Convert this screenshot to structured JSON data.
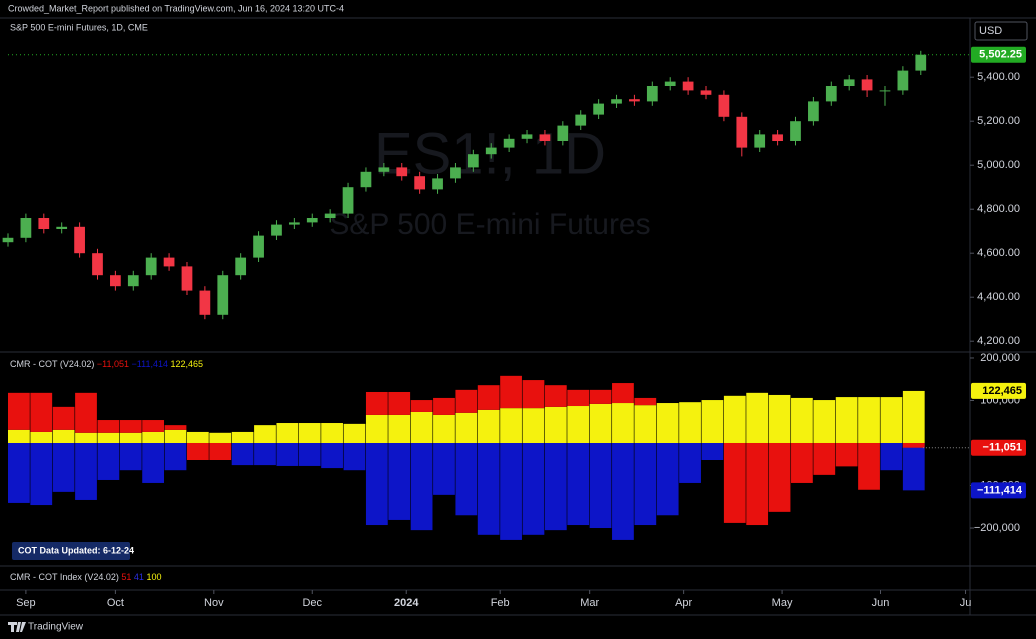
{
  "header": {
    "publisher": "Crowded_Market_Report published on TradingView.com, Jun 16, 2024 13:20 UTC-4",
    "currency": "USD",
    "footer": "TradingView"
  },
  "chart_data": [
    {
      "type": "candlestick",
      "title": "S&P 500 E-mini Futures, 1D, CME",
      "watermark": "ES1!, 1D",
      "watermark_subtitle": "S&P 500 E-mini Futures",
      "up_color": "#4caf50",
      "down_color": "#f23645",
      "last_value": {
        "value": 5502.25,
        "label": "5,502.25"
      },
      "last_color": "#22ab23",
      "x": [
        0,
        4,
        8,
        12,
        16,
        20,
        24,
        28,
        32,
        36,
        40,
        44,
        48,
        52,
        56,
        60,
        64,
        68,
        72,
        76,
        80,
        84,
        88,
        92,
        96,
        100,
        104,
        108,
        112,
        116,
        120,
        124,
        128,
        132,
        136,
        140,
        144,
        148,
        152,
        156,
        160,
        164,
        168,
        172,
        176,
        180,
        184,
        188,
        192,
        196,
        200,
        204
      ],
      "open": [
        4650,
        4670,
        4760,
        4710,
        4720,
        4600,
        4500,
        4450,
        4500,
        4580,
        4540,
        4430,
        4320,
        4500,
        4580,
        4680,
        4730,
        4740,
        4760,
        4780,
        4900,
        4970,
        4990,
        4950,
        4890,
        4940,
        4990,
        5050,
        5080,
        5120,
        5140,
        5110,
        5180,
        5230,
        5280,
        5300,
        5290,
        5360,
        5380,
        5340,
        5320,
        5220,
        5080,
        5140,
        5110,
        5200,
        5290,
        5360,
        5390,
        5340,
        5340,
        5430
      ],
      "high": [
        4690,
        4780,
        4780,
        4740,
        4740,
        4620,
        4520,
        4520,
        4600,
        4600,
        4560,
        4450,
        4520,
        4600,
        4700,
        4750,
        4760,
        4780,
        4800,
        4920,
        4990,
        5010,
        5010,
        4970,
        4960,
        5010,
        5070,
        5100,
        5140,
        5160,
        5160,
        5200,
        5250,
        5300,
        5320,
        5320,
        5380,
        5400,
        5400,
        5360,
        5340,
        5240,
        5160,
        5160,
        5220,
        5310,
        5380,
        5410,
        5410,
        5360,
        5450,
        5520
      ],
      "low": [
        4630,
        4650,
        4690,
        4690,
        4580,
        4480,
        4430,
        4430,
        4480,
        4520,
        4410,
        4300,
        4300,
        4480,
        4560,
        4660,
        4710,
        4720,
        4740,
        4760,
        4880,
        4950,
        4930,
        4870,
        4870,
        4920,
        4970,
        5030,
        5060,
        5100,
        5090,
        5090,
        5160,
        5210,
        5260,
        5270,
        5270,
        5340,
        5320,
        5300,
        5200,
        5040,
        5060,
        5090,
        5090,
        5180,
        5270,
        5340,
        5310,
        5270,
        5320,
        5410
      ],
      "close": [
        4670,
        4760,
        4710,
        4720,
        4600,
        4500,
        4450,
        4500,
        4580,
        4540,
        4430,
        4320,
        4500,
        4580,
        4680,
        4730,
        4740,
        4760,
        4780,
        4900,
        4970,
        4990,
        4950,
        4890,
        4940,
        4990,
        5050,
        5080,
        5120,
        5140,
        5110,
        5180,
        5230,
        5280,
        5300,
        5290,
        5360,
        5380,
        5340,
        5320,
        5220,
        5080,
        5140,
        5110,
        5200,
        5290,
        5360,
        5390,
        5340,
        5340,
        5430,
        5502.25
      ],
      "xlim": [
        0,
        215
      ],
      "xticks": [
        {
          "value": 4,
          "label": "Sep"
        },
        {
          "value": 24,
          "label": "Oct"
        },
        {
          "value": 46,
          "label": "Nov"
        },
        {
          "value": 68,
          "label": "Dec"
        },
        {
          "value": 89,
          "label": "2024"
        },
        {
          "value": 110,
          "label": "Feb"
        },
        {
          "value": 130,
          "label": "Mar"
        },
        {
          "value": 151,
          "label": "Apr"
        },
        {
          "value": 173,
          "label": "May"
        },
        {
          "value": 195,
          "label": "Jun"
        },
        {
          "value": 214,
          "label": "Ju"
        }
      ],
      "ylim": [
        4160,
        5660
      ],
      "yticks": [
        {
          "value": 4200,
          "label": "4,200.00"
        },
        {
          "value": 4400,
          "label": "4,400.00"
        },
        {
          "value": 4600,
          "label": "4,600.00"
        },
        {
          "value": 4800,
          "label": "4,800.00"
        },
        {
          "value": 5000,
          "label": "5,000.00"
        },
        {
          "value": 5200,
          "label": "5,200.00"
        },
        {
          "value": 5400,
          "label": "5,400.00"
        }
      ]
    },
    {
      "type": "stacked-bar",
      "title": "CMR - COT (V24.02)",
      "note": "COT Data Updated:  6-12-24",
      "x": [
        0,
        5,
        10,
        15,
        20,
        25,
        30,
        35,
        40,
        45,
        50,
        55,
        60,
        65,
        70,
        75,
        80,
        85,
        90,
        95,
        100,
        105,
        110,
        115,
        120,
        125,
        130,
        135,
        140,
        145,
        150,
        155,
        160,
        165,
        170,
        175,
        180,
        185,
        190,
        195,
        200
      ],
      "xlim": [
        0,
        215
      ],
      "ylim": [
        -287000,
        207000
      ],
      "yticks": [
        {
          "value": 200000,
          "label": "200,000"
        },
        {
          "value": 100000,
          "label": "100,000"
        },
        {
          "value": -100000,
          "label": "−100,000"
        },
        {
          "value": -200000,
          "label": "−200,000"
        }
      ],
      "series": [
        {
          "color": "#f5f20e",
          "legend_value_label": "122,465",
          "values": [
            31000,
            26000,
            31000,
            24000,
            24000,
            24000,
            26000,
            31000,
            26000,
            24000,
            26000,
            42000,
            47000,
            47000,
            47000,
            45000,
            66000,
            66000,
            73000,
            66000,
            71000,
            78000,
            82000,
            82000,
            85000,
            87000,
            92000,
            94000,
            89000,
            94000,
            96000,
            101000,
            111000,
            118000,
            113000,
            106000,
            101000,
            108000,
            108000,
            108000,
            122465
          ]
        },
        {
          "color": "#e8110e",
          "legend_value_label": "−11,051",
          "values": [
            87000,
            92000,
            54000,
            94000,
            30000,
            30000,
            28000,
            11000,
            -40000,
            -40000,
            null,
            null,
            null,
            null,
            null,
            null,
            54000,
            54000,
            28000,
            40000,
            54000,
            58000,
            76000,
            66000,
            51000,
            38000,
            33000,
            47000,
            17000,
            null,
            null,
            null,
            -188000,
            -193000,
            -162000,
            -94000,
            -75000,
            -55000,
            -110000,
            null,
            -11051
          ]
        },
        {
          "color": "#0d15c8",
          "legend_value_label": "−111,414",
          "values": [
            -141000,
            -146000,
            -115000,
            -134000,
            -87000,
            -64000,
            -94000,
            -64000,
            null,
            null,
            -52000,
            -52000,
            -54000,
            -54000,
            -59000,
            -64000,
            -193000,
            -181000,
            -205000,
            -122000,
            -170000,
            -216000,
            -228000,
            -216000,
            -205000,
            -193000,
            -200000,
            -228000,
            -193000,
            -170000,
            -94000,
            -40000,
            null,
            null,
            null,
            null,
            null,
            null,
            null,
            -64000,
            -111414
          ]
        }
      ]
    },
    {
      "type": "index",
      "title": "CMR - COT Index (V24.02)",
      "values": [
        51,
        41,
        100
      ],
      "colors": [
        "#e8110e",
        "#2a2ee0",
        "#f5f20e"
      ]
    }
  ]
}
